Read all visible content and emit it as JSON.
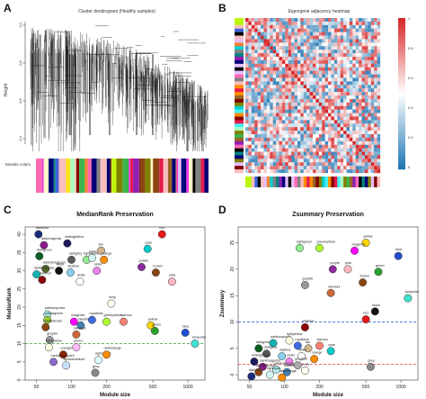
{
  "panels": {
    "a": {
      "label": "A",
      "title": "Cluster dendrogram (Healthy samples)",
      "ylabel": "Height",
      "yticks": [
        "1.0",
        "0.8",
        "0.6",
        "0.4"
      ],
      "color_bar_label": "Module colors"
    },
    "b": {
      "label": "B",
      "title": "Eigengene adjacency heatmap",
      "colorbar_ticks": [
        "1",
        "0.8",
        "0.6",
        "0.4",
        "0.2",
        "0"
      ],
      "colorbar_colors": {
        "high": "#d62728",
        "mid": "#ffffff",
        "low": "#1f77b4"
      }
    },
    "c": {
      "label": "C"
    },
    "d": {
      "label": "D"
    }
  },
  "chart_data": [
    {
      "type": "scatter",
      "title": "MedianRank Preservation",
      "xlabel": "Module size",
      "ylabel": "MedianRank",
      "xscale": "log",
      "xlim": [
        40,
        1400
      ],
      "ylim": [
        0,
        42
      ],
      "xticks": [
        "50",
        "100",
        "200",
        "500",
        "1000"
      ],
      "yticks": [
        "0",
        "5",
        "10",
        "15",
        "20",
        "25",
        "30",
        "35",
        "40"
      ],
      "reference_lines": [
        {
          "y": 10,
          "color": "#2ca02c",
          "style": "dashed"
        }
      ],
      "points": [
        {
          "label": "darkblue",
          "x": 52,
          "y": 40,
          "color": "#1a2c7a"
        },
        {
          "label": "darkmagenta",
          "x": 58,
          "y": 37,
          "color": "#8b1a8b"
        },
        {
          "label": "darkgreen",
          "x": 53,
          "y": 34,
          "color": "#0b5e1f"
        },
        {
          "label": "darkolivegreen",
          "x": 60,
          "y": 30.5,
          "color": "#556b2f"
        },
        {
          "label": "darkturquoise",
          "x": 50,
          "y": 29,
          "color": "#14b3b3"
        },
        {
          "label": "darkred",
          "x": 56,
          "y": 27.5,
          "color": "#8b0000"
        },
        {
          "label": "midnightblue",
          "x": 92,
          "y": 37.5,
          "color": "#1b1b5e"
        },
        {
          "label": "darkgrey",
          "x": 100,
          "y": 33,
          "color": "#5a5a5a"
        },
        {
          "label": "lightgreen",
          "x": 135,
          "y": 33,
          "color": "#90ee90"
        },
        {
          "label": "lightcyan",
          "x": 150,
          "y": 33.5,
          "color": "#d5f5f5"
        },
        {
          "label": "tan",
          "x": 180,
          "y": 35.5,
          "color": "#d2b48c"
        },
        {
          "label": "orange",
          "x": 190,
          "y": 33,
          "color": "#ff8c00"
        },
        {
          "label": "violet",
          "x": 165,
          "y": 30,
          "color": "#ee82ee"
        },
        {
          "label": "black",
          "x": 78,
          "y": 30,
          "color": "#111111"
        },
        {
          "label": "skyblue",
          "x": 98,
          "y": 29.5,
          "color": "#87ceeb"
        },
        {
          "label": "white",
          "x": 118,
          "y": 27,
          "color": "#ffffff"
        },
        {
          "label": "red",
          "x": 600,
          "y": 40,
          "color": "#e31a1c"
        },
        {
          "label": "cyan",
          "x": 450,
          "y": 36,
          "color": "#00cccc"
        },
        {
          "label": "purple",
          "x": 400,
          "y": 31,
          "color": "#8b2b9e"
        },
        {
          "label": "brown",
          "x": 530,
          "y": 29.5,
          "color": "#8b4513"
        },
        {
          "label": "pink",
          "x": 730,
          "y": 27,
          "color": "#ffb6c1"
        },
        {
          "label": "ivory",
          "x": 220,
          "y": 21,
          "color": "#fffff0"
        },
        {
          "label": "paleturquoise",
          "x": 62,
          "y": 18,
          "color": "#afeeee"
        },
        {
          "label": "yellowgreen",
          "x": 62,
          "y": 16.5,
          "color": "#9acd32"
        },
        {
          "label": "saddlebrown",
          "x": 60,
          "y": 14.5,
          "color": "#8b4513"
        },
        {
          "label": "magenta",
          "x": 105,
          "y": 16,
          "color": "#ff00ff"
        },
        {
          "label": "steelblue",
          "x": 120,
          "y": 15,
          "color": "#4682b4"
        },
        {
          "label": "royalblue",
          "x": 150,
          "y": 16.5,
          "color": "#4169e1"
        },
        {
          "label": "greenyellow",
          "x": 200,
          "y": 16,
          "color": "#adff2f"
        },
        {
          "label": "salmon",
          "x": 280,
          "y": 16,
          "color": "#fa8072"
        },
        {
          "label": "yellow",
          "x": 480,
          "y": 15,
          "color": "#ffd700"
        },
        {
          "label": "grey60",
          "x": 65,
          "y": 11,
          "color": "#999999"
        },
        {
          "label": "lightyellow",
          "x": 64,
          "y": 9,
          "color": "#ffffe0"
        },
        {
          "label": "sienna3",
          "x": 110,
          "y": 12.5,
          "color": "#cd6839"
        },
        {
          "label": "green",
          "x": 520,
          "y": 13.5,
          "color": "#2ca02c"
        },
        {
          "label": "blue",
          "x": 950,
          "y": 13,
          "color": "#1f4fd1"
        },
        {
          "label": "turquoise",
          "x": 1150,
          "y": 10,
          "color": "#40e0d0"
        },
        {
          "label": "lightcyan1",
          "x": 170,
          "y": 5.5,
          "color": "#e0ffff"
        },
        {
          "label": "grey",
          "x": 160,
          "y": 2,
          "color": "#888888"
        },
        {
          "label": "orangered4",
          "x": 85,
          "y": 7,
          "color": "#8b2500"
        },
        {
          "label": "mediumpurple3",
          "x": 70,
          "y": 5,
          "color": "#8968cd"
        },
        {
          "label": "darkorange",
          "x": 200,
          "y": 7,
          "color": "#ff8c00"
        },
        {
          "label": "lightsteelblue1",
          "x": 90,
          "y": 4,
          "color": "#cae1ff"
        },
        {
          "label": "plum1",
          "x": 110,
          "y": 9,
          "color": "#ffbbff"
        }
      ]
    },
    {
      "type": "scatter",
      "title": "Zsummary Preservation",
      "xlabel": "Module size",
      "ylabel": "Zsummary",
      "xscale": "log",
      "xlim": [
        40,
        1400
      ],
      "ylim": [
        -1,
        28
      ],
      "xticks": [
        "50",
        "100",
        "200",
        "500",
        "1000"
      ],
      "yticks": [
        "0",
        "5",
        "10",
        "15",
        "20",
        "25"
      ],
      "reference_lines": [
        {
          "y": 2,
          "color": "#e31a1c",
          "style": "dashed"
        },
        {
          "y": 10,
          "color": "#1f4fd1",
          "style": "dashed"
        }
      ],
      "points": [
        {
          "label": "yellow",
          "x": 500,
          "y": 25,
          "color": "#ffd700"
        },
        {
          "label": "magenta",
          "x": 400,
          "y": 23.5,
          "color": "#ff00ff"
        },
        {
          "label": "blue",
          "x": 950,
          "y": 22.5,
          "color": "#1f4fd1"
        },
        {
          "label": "lightgreen",
          "x": 135,
          "y": 24,
          "color": "#90ee90"
        },
        {
          "label": "greenyellow",
          "x": 200,
          "y": 24,
          "color": "#adff2f"
        },
        {
          "label": "purple",
          "x": 260,
          "y": 20,
          "color": "#8b2b9e"
        },
        {
          "label": "pink",
          "x": 350,
          "y": 20,
          "color": "#ffb6c1"
        },
        {
          "label": "green",
          "x": 640,
          "y": 19.5,
          "color": "#2ca02c"
        },
        {
          "label": "brown",
          "x": 470,
          "y": 17.5,
          "color": "#8b4513"
        },
        {
          "label": "grey60",
          "x": 150,
          "y": 17,
          "color": "#999999"
        },
        {
          "label": "sienna3",
          "x": 250,
          "y": 15.5,
          "color": "#cd6839"
        },
        {
          "label": "turquoise",
          "x": 1150,
          "y": 14.5,
          "color": "#40e0d0"
        },
        {
          "label": "black",
          "x": 600,
          "y": 12,
          "color": "#111111"
        },
        {
          "label": "red",
          "x": 500,
          "y": 10.5,
          "color": "#e31a1c"
        },
        {
          "label": "darkred",
          "x": 150,
          "y": 9,
          "color": "#8b0000"
        },
        {
          "label": "darkgreen",
          "x": 60,
          "y": 5,
          "color": "#0b5e1f"
        },
        {
          "label": "darkturquoise",
          "x": 80,
          "y": 6,
          "color": "#14b3b3"
        },
        {
          "label": "lightyellow",
          "x": 110,
          "y": 6.5,
          "color": "#ffffe0"
        },
        {
          "label": "royalblue",
          "x": 130,
          "y": 5.5,
          "color": "#4169e1"
        },
        {
          "label": "tan",
          "x": 160,
          "y": 5,
          "color": "#d2b48c"
        },
        {
          "label": "salmon",
          "x": 200,
          "y": 5.5,
          "color": "#fa8072"
        },
        {
          "label": "cyan",
          "x": 250,
          "y": 4.5,
          "color": "#00cccc"
        },
        {
          "label": "darkgrey",
          "x": 70,
          "y": 4,
          "color": "#5a5a5a"
        },
        {
          "label": "skyblue",
          "x": 95,
          "y": 3.5,
          "color": "#87ceeb"
        },
        {
          "label": "white",
          "x": 140,
          "y": 3.5,
          "color": "#ffffff"
        },
        {
          "label": "orange",
          "x": 180,
          "y": 3,
          "color": "#ff8c00"
        },
        {
          "label": "violet",
          "x": 110,
          "y": 2.5,
          "color": "#ee82ee"
        },
        {
          "label": "midnightblue",
          "x": 55,
          "y": 2.5,
          "color": "#1b1b5e"
        },
        {
          "label": "darkmagenta",
          "x": 65,
          "y": 1.5,
          "color": "#8b1a8b"
        },
        {
          "label": "paleturquoise",
          "x": 85,
          "y": 1,
          "color": "#afeeee"
        },
        {
          "label": "steelblue",
          "x": 105,
          "y": 0.5,
          "color": "#4682b4"
        },
        {
          "label": "lightcyan",
          "x": 75,
          "y": 0,
          "color": "#d5f5f5"
        },
        {
          "label": "darkorange",
          "x": 95,
          "y": -0.5,
          "color": "#ff8c00"
        },
        {
          "label": "saddlebrown",
          "x": 60,
          "y": 0.5,
          "color": "#8b4513"
        },
        {
          "label": "ivory",
          "x": 150,
          "y": 0.8,
          "color": "#fffff0"
        },
        {
          "label": "darkblue",
          "x": 52,
          "y": -0.3,
          "color": "#1a2c7a"
        },
        {
          "label": "grey",
          "x": 550,
          "y": 1.5,
          "color": "#888888"
        },
        {
          "label": "grey60b",
          "x": 130,
          "y": 1.8,
          "color": "#aaaaaa"
        }
      ]
    }
  ]
}
